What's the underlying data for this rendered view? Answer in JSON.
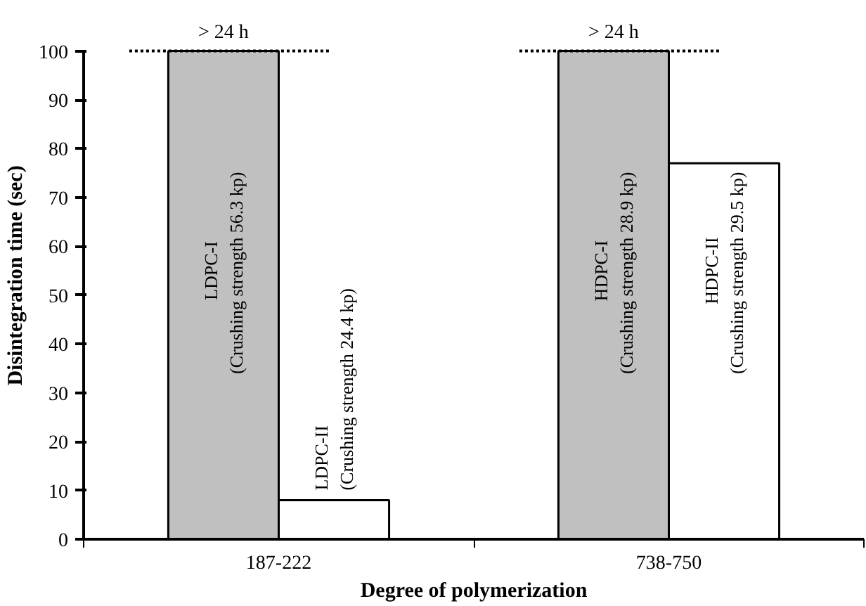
{
  "chart_data": {
    "type": "bar",
    "xlabel": "Degree of polymerization",
    "ylabel": "Disintegration time (sec)",
    "categories": [
      "187-222",
      "738-750"
    ],
    "series": [
      {
        "color": "#c0c0c0",
        "values": [
          100,
          100
        ],
        "value_labels": [
          "LDPC-I\n(Crushing strength  56.3 kp)",
          "HDPC-I\n(Crushing strength  28.9 kp)"
        ]
      },
      {
        "color": "#ffffff",
        "values": [
          8,
          77
        ],
        "value_labels": [
          "LDPC-II\n(Crushing strength  24.4 kp)",
          "HDPC-II\n(Crushing strength  29.5 kp)"
        ]
      }
    ],
    "ylim": [
      0,
      100
    ],
    "yticks": [
      0,
      10,
      20,
      30,
      40,
      50,
      60,
      70,
      80,
      90,
      100
    ],
    "grid": false,
    "annotations": [
      {
        "text": "> 24 h",
        "x": "187-222",
        "y": 100
      },
      {
        "text": "> 24 h",
        "x": "738-750",
        "y": 100
      }
    ]
  }
}
